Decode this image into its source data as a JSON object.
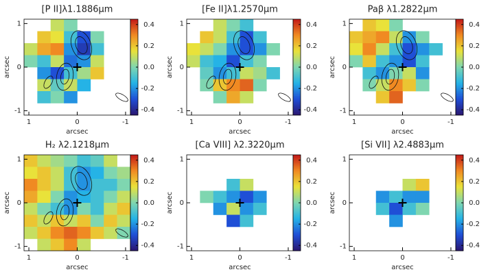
{
  "chart_data": [
    {
      "type": "heatmap",
      "title": "[P II]λ1.1886μm",
      "xlabel": "arcsec",
      "ylabel": "arcsec",
      "xlim": [
        1.1,
        -1.1
      ],
      "ylim": [
        -1.1,
        1.1
      ],
      "xticks": [
        1,
        0,
        -1
      ],
      "yticks": [
        1,
        0,
        -1
      ],
      "clim": [
        -0.45,
        0.45
      ],
      "cticks": [
        0.4,
        0.2,
        {
          "value": 0,
          "label": "0.0"
        },
        -0.2,
        -0.4
      ],
      "contours": true,
      "colormap": [
        "#2b1670",
        "#1f4fd6",
        "#25b3e6",
        "#7fd6b0",
        "#e9e23a",
        "#f08a22",
        "#c21818"
      ],
      "cells": [
        [
          null,
          null,
          0.1,
          0.0,
          null,
          null,
          null,
          null
        ],
        [
          null,
          0.2,
          0.15,
          -0.1,
          -0.3,
          0.0,
          null,
          null
        ],
        [
          0.1,
          0.25,
          0.3,
          -0.2,
          -0.35,
          -0.1,
          null,
          null
        ],
        [
          0.0,
          -0.1,
          0.1,
          -0.25,
          -0.2,
          0.1,
          null,
          null
        ],
        [
          null,
          -0.2,
          -0.3,
          -0.1,
          0.05,
          0.2,
          null,
          null
        ],
        [
          null,
          0.1,
          -0.05,
          0.1,
          -0.15,
          null,
          null,
          null
        ],
        [
          null,
          -0.1,
          0.0,
          -0.2,
          null,
          null,
          null,
          null
        ],
        [
          null,
          null,
          null,
          null,
          null,
          null,
          null,
          null
        ]
      ]
    },
    {
      "type": "heatmap",
      "title": "[Fe II]λ1.2570μm",
      "xlabel": "arcsec",
      "ylabel": "arcsec",
      "xlim": [
        1.1,
        -1.1
      ],
      "ylim": [
        -1.1,
        1.1
      ],
      "xticks": [
        1,
        0,
        -1
      ],
      "yticks": [
        1,
        0,
        -1
      ],
      "clim": [
        -0.45,
        0.45
      ],
      "cticks": [
        0.4,
        0.2,
        {
          "value": 0,
          "label": "0.0"
        },
        -0.2,
        -0.4
      ],
      "contours": true,
      "colormap": [
        "#2b1670",
        "#1f4fd6",
        "#25b3e6",
        "#7fd6b0",
        "#e9e23a",
        "#f08a22",
        "#c21818"
      ],
      "cells": [
        [
          null,
          null,
          0.1,
          0.0,
          -0.1,
          null,
          null,
          null
        ],
        [
          null,
          0.2,
          0.1,
          -0.1,
          -0.3,
          -0.1,
          null,
          null
        ],
        [
          0.15,
          0.1,
          0.0,
          -0.2,
          -0.3,
          -0.2,
          0.0,
          null
        ],
        [
          0.1,
          -0.1,
          -0.15,
          -0.3,
          -0.1,
          0.0,
          null,
          null
        ],
        [
          null,
          -0.05,
          -0.2,
          -0.1,
          0.1,
          0.05,
          -0.1,
          null
        ],
        [
          null,
          0.0,
          0.2,
          0.3,
          0.35,
          0.0,
          null,
          null
        ],
        [
          null,
          null,
          0.0,
          0.25,
          0.1,
          null,
          null,
          null
        ],
        [
          null,
          null,
          null,
          null,
          null,
          null,
          null,
          null
        ]
      ]
    },
    {
      "type": "heatmap",
      "title": "Paβ λ1.2822μm",
      "xlabel": "arcsec",
      "ylabel": "arcsec",
      "xlim": [
        1.1,
        -1.1
      ],
      "ylim": [
        -1.1,
        1.1
      ],
      "xticks": [
        1,
        0,
        -1
      ],
      "yticks": [
        1,
        0,
        -1
      ],
      "clim": [
        -0.45,
        0.45
      ],
      "cticks": [
        0.4,
        0.2,
        {
          "value": 0,
          "label": "0.0"
        },
        -0.2,
        -0.4
      ],
      "contours": true,
      "colormap": [
        "#2b1670",
        "#1f4fd6",
        "#25b3e6",
        "#7fd6b0",
        "#e9e23a",
        "#f08a22",
        "#c21818"
      ],
      "cells": [
        [
          null,
          0.2,
          0.15,
          0.0,
          null,
          null,
          null,
          null
        ],
        [
          0.2,
          0.25,
          0.3,
          0.1,
          -0.2,
          0.0,
          null,
          null
        ],
        [
          0.15,
          0.3,
          0.1,
          -0.1,
          -0.3,
          -0.2,
          -0.1,
          null
        ],
        [
          0.0,
          0.2,
          -0.1,
          -0.2,
          -0.3,
          -0.1,
          null,
          null
        ],
        [
          null,
          -0.1,
          -0.2,
          0.0,
          0.1,
          -0.2,
          null,
          null
        ],
        [
          null,
          0.0,
          0.1,
          0.3,
          0.2,
          0.0,
          null,
          null
        ],
        [
          null,
          null,
          0.2,
          0.35,
          null,
          null,
          null,
          null
        ],
        [
          null,
          null,
          null,
          null,
          null,
          null,
          null,
          null
        ]
      ]
    },
    {
      "type": "heatmap",
      "title": "H₂ λ2.1218μm",
      "xlabel": "arcsec",
      "ylabel": "arcsec",
      "xlim": [
        1.1,
        -1.1
      ],
      "ylim": [
        -1.1,
        1.1
      ],
      "xticks": [
        1,
        0,
        -1
      ],
      "yticks": [
        1,
        0,
        -1
      ],
      "clim": [
        -0.45,
        0.45
      ],
      "cticks": [
        0.4,
        0.2,
        {
          "value": 0,
          "label": "0.0"
        },
        -0.2,
        -0.4
      ],
      "contours": true,
      "colormap": [
        "#2b1670",
        "#1f4fd6",
        "#25b3e6",
        "#7fd6b0",
        "#e9e23a",
        "#f08a22",
        "#c21818"
      ],
      "cells": [
        [
          0.2,
          0.1,
          0.05,
          0.0,
          -0.1,
          -0.05,
          0.1,
          null
        ],
        [
          0.15,
          0.2,
          0.1,
          -0.1,
          -0.2,
          -0.15,
          0.0,
          0.05
        ],
        [
          0.3,
          0.2,
          0.1,
          -0.1,
          -0.2,
          -0.1,
          -0.1,
          0.0
        ],
        [
          0.25,
          0.15,
          0.0,
          -0.2,
          -0.15,
          -0.1,
          0.0,
          0.1
        ],
        [
          0.1,
          0.0,
          -0.1,
          -0.2,
          0.0,
          -0.1,
          0.1,
          0.2
        ],
        [
          0.2,
          0.1,
          0.2,
          0.1,
          0.2,
          0.0,
          0.2,
          0.1
        ],
        [
          0.1,
          0.2,
          0.3,
          0.35,
          0.3,
          0.2,
          0.1,
          0.0
        ],
        [
          null,
          0.1,
          0.2,
          0.3,
          0.1,
          null,
          null,
          null
        ]
      ]
    },
    {
      "type": "heatmap",
      "title": "[Ca VIII] λ2.3220μm",
      "xlabel": "arcsec",
      "ylabel": "arcsec",
      "xlim": [
        1.1,
        -1.1
      ],
      "ylim": [
        -1.1,
        1.1
      ],
      "xticks": [
        1,
        0,
        -1
      ],
      "yticks": [
        1,
        0,
        -1
      ],
      "clim": [
        -0.45,
        0.45
      ],
      "cticks": [
        0.4,
        0.2,
        {
          "value": 0,
          "label": "0.0"
        },
        -0.2,
        -0.4
      ],
      "contours": false,
      "colormap": [
        "#2b1670",
        "#1f4fd6",
        "#25b3e6",
        "#7fd6b0",
        "#e9e23a",
        "#f08a22",
        "#c21818"
      ],
      "cells": [
        [
          null,
          null,
          null,
          null,
          null,
          null,
          null,
          null
        ],
        [
          null,
          null,
          null,
          null,
          null,
          null,
          null,
          null
        ],
        [
          null,
          null,
          null,
          -0.1,
          0.1,
          null,
          null,
          null
        ],
        [
          null,
          0.0,
          -0.1,
          -0.2,
          -0.3,
          -0.2,
          null,
          null
        ],
        [
          null,
          null,
          -0.2,
          0.1,
          -0.2,
          -0.1,
          null,
          null
        ],
        [
          null,
          null,
          null,
          -0.3,
          -0.1,
          null,
          null,
          null
        ],
        [
          null,
          null,
          null,
          null,
          null,
          null,
          null,
          null
        ],
        [
          null,
          null,
          null,
          null,
          null,
          null,
          null,
          null
        ]
      ]
    },
    {
      "type": "heatmap",
      "title": "[Si VII] λ2.4883μm",
      "xlabel": "arcsec",
      "ylabel": "arcsec",
      "xlim": [
        1.1,
        -1.1
      ],
      "ylim": [
        -1.1,
        1.1
      ],
      "xticks": [
        1,
        0,
        -1
      ],
      "yticks": [
        1,
        0,
        -1
      ],
      "clim": [
        -0.45,
        0.45
      ],
      "cticks": [
        0.4,
        0.2,
        {
          "value": 0,
          "label": "0.0"
        },
        -0.2,
        -0.4
      ],
      "contours": false,
      "colormap": [
        "#2b1670",
        "#1f4fd6",
        "#25b3e6",
        "#7fd6b0",
        "#e9e23a",
        "#f08a22",
        "#c21818"
      ],
      "cells": [
        [
          null,
          null,
          null,
          null,
          null,
          null,
          null,
          null
        ],
        [
          null,
          null,
          null,
          null,
          null,
          null,
          null,
          null
        ],
        [
          null,
          null,
          null,
          null,
          0.1,
          0.2,
          null,
          null
        ],
        [
          null,
          null,
          -0.2,
          -0.1,
          -0.2,
          -0.2,
          null,
          null
        ],
        [
          null,
          null,
          -0.1,
          -0.3,
          -0.1,
          0.0,
          null,
          null
        ],
        [
          null,
          null,
          null,
          -0.2,
          null,
          null,
          null,
          null
        ],
        [
          null,
          null,
          null,
          null,
          null,
          null,
          null,
          null
        ],
        [
          null,
          null,
          null,
          null,
          null,
          null,
          null,
          null
        ]
      ]
    }
  ]
}
